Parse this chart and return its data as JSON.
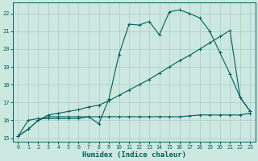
{
  "xlabel": "Humidex (Indice chaleur)",
  "bg_color": "#cce8e0",
  "grid_color": "#aacccc",
  "line_color": "#006060",
  "xlim": [
    -0.5,
    23.5
  ],
  "ylim": [
    14.8,
    22.6
  ],
  "yticks": [
    15,
    16,
    17,
    18,
    19,
    20,
    21,
    22
  ],
  "xticks": [
    0,
    1,
    2,
    3,
    4,
    5,
    6,
    7,
    8,
    9,
    10,
    11,
    12,
    13,
    14,
    15,
    16,
    17,
    18,
    19,
    20,
    21,
    22,
    23
  ],
  "line1_x": [
    0,
    1,
    2,
    3,
    4,
    5,
    6,
    7,
    8,
    9,
    10,
    11,
    12,
    13,
    14,
    15,
    16,
    17,
    18,
    19,
    20,
    21,
    22,
    23
  ],
  "line1_y": [
    15.1,
    16.0,
    16.1,
    16.1,
    16.1,
    16.1,
    16.1,
    16.2,
    15.8,
    17.2,
    19.7,
    21.4,
    21.35,
    21.55,
    20.8,
    22.1,
    22.2,
    22.0,
    21.75,
    21.0,
    19.8,
    18.6,
    17.3,
    16.5
  ],
  "line2_x": [
    0,
    1,
    2,
    3,
    4,
    5,
    6,
    7,
    8,
    9,
    10,
    11,
    12,
    13,
    14,
    15,
    16,
    17,
    18,
    19,
    20,
    21,
    22,
    23
  ],
  "line2_y": [
    15.1,
    15.5,
    16.0,
    16.3,
    16.4,
    16.5,
    16.6,
    16.75,
    16.85,
    17.1,
    17.4,
    17.7,
    18.0,
    18.3,
    18.65,
    19.0,
    19.35,
    19.65,
    20.0,
    20.35,
    20.7,
    21.05,
    17.3,
    16.5
  ],
  "line3_x": [
    0,
    1,
    2,
    3,
    4,
    5,
    6,
    7,
    8,
    9,
    10,
    11,
    12,
    13,
    14,
    15,
    16,
    17,
    18,
    19,
    20,
    21,
    22,
    23
  ],
  "line3_y": [
    15.1,
    15.5,
    16.0,
    16.2,
    16.2,
    16.2,
    16.2,
    16.2,
    16.2,
    16.2,
    16.2,
    16.2,
    16.2,
    16.2,
    16.2,
    16.2,
    16.2,
    16.25,
    16.3,
    16.3,
    16.3,
    16.3,
    16.3,
    16.4
  ]
}
